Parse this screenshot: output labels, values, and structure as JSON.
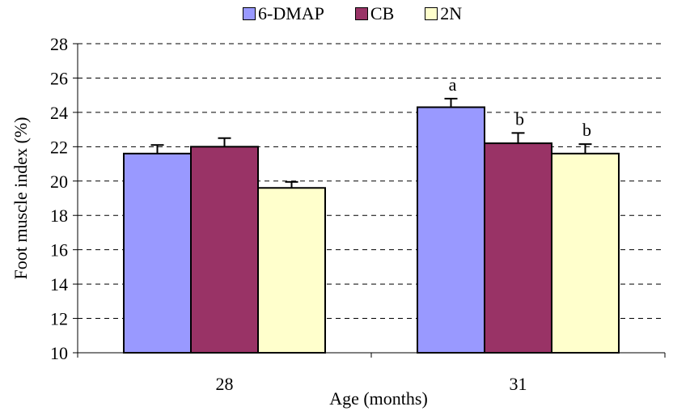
{
  "chart_data": {
    "type": "bar",
    "categories": [
      "28",
      "31"
    ],
    "series": [
      {
        "name": "6-DMAP",
        "values": [
          21.6,
          24.3
        ],
        "errors": [
          0.5,
          0.5
        ],
        "color": "#9999ff",
        "labels": [
          "",
          "a"
        ]
      },
      {
        "name": "CB",
        "values": [
          22.0,
          22.2
        ],
        "errors": [
          0.5,
          0.6
        ],
        "color": "#993366",
        "labels": [
          "",
          "b"
        ]
      },
      {
        "name": "2N",
        "values": [
          19.6,
          21.6
        ],
        "errors": [
          0.35,
          0.55
        ],
        "color": "#ffffcc",
        "labels": [
          "",
          "b"
        ]
      }
    ],
    "xlabel": "Age (months)",
    "ylabel": "Foot muscle index (%)",
    "ylim": [
      10,
      28
    ],
    "yticks": [
      10,
      12,
      14,
      16,
      18,
      20,
      22,
      24,
      26,
      28
    ],
    "grid": "dashed-horizontal",
    "legend_position": "top"
  }
}
